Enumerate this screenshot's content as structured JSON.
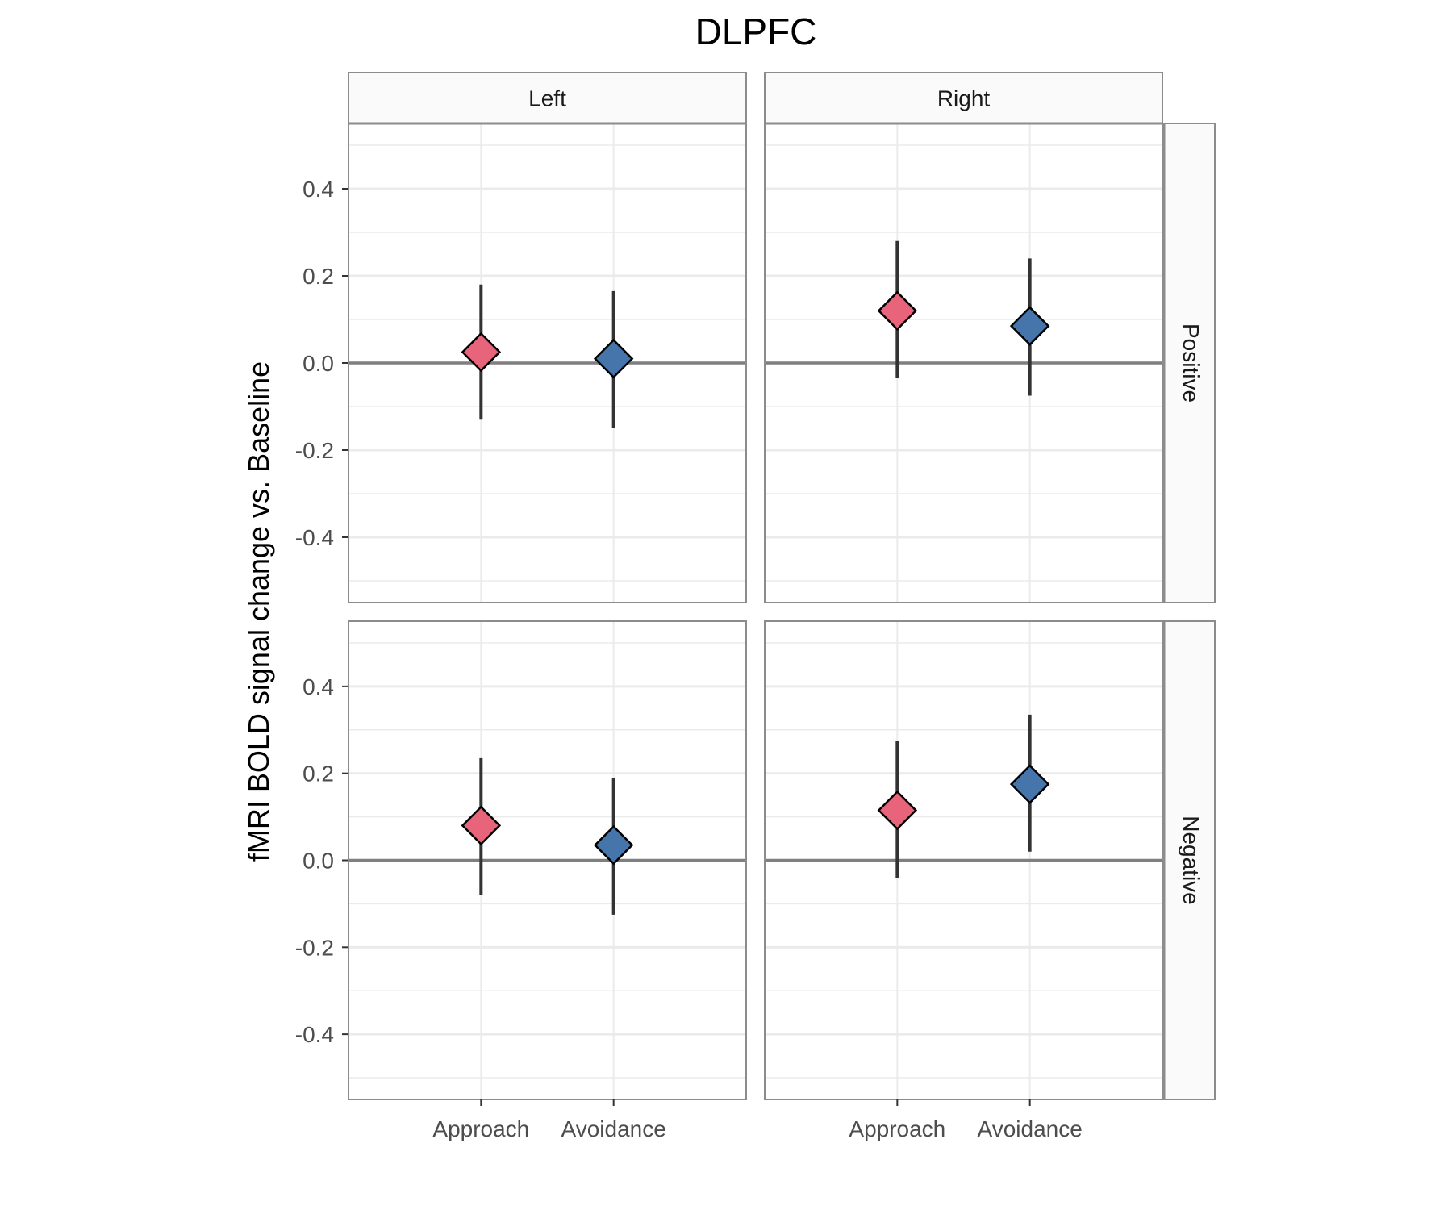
{
  "chart_data": {
    "type": "scatter",
    "title": "DLPFC",
    "ylabel": "fMRI BOLD signal change vs. Baseline",
    "xlabel": "",
    "categories": [
      "Approach",
      "Avoidance"
    ],
    "column_facets": [
      "Left",
      "Right"
    ],
    "row_facets": [
      "Positive",
      "Negative"
    ],
    "ylim": [
      -0.55,
      0.55
    ],
    "yticks": [
      "0.4",
      "0.2",
      "0.0",
      "-0.2",
      "-0.4"
    ],
    "ytick_values": [
      0.4,
      0.2,
      0.0,
      -0.2,
      -0.4
    ],
    "reference_line": 0.0,
    "marker": "diamond",
    "colors": {
      "Approach": "#e8647a",
      "Avoidance": "#4575aa"
    },
    "grid": true,
    "panels": [
      {
        "column": "Left",
        "row": "Positive",
        "points": [
          {
            "category": "Approach",
            "value": 0.025,
            "lower": -0.13,
            "upper": 0.18
          },
          {
            "category": "Avoidance",
            "value": 0.01,
            "lower": -0.15,
            "upper": 0.165
          }
        ]
      },
      {
        "column": "Right",
        "row": "Positive",
        "points": [
          {
            "category": "Approach",
            "value": 0.12,
            "lower": -0.035,
            "upper": 0.28
          },
          {
            "category": "Avoidance",
            "value": 0.085,
            "lower": -0.075,
            "upper": 0.24
          }
        ]
      },
      {
        "column": "Left",
        "row": "Negative",
        "points": [
          {
            "category": "Approach",
            "value": 0.08,
            "lower": -0.08,
            "upper": 0.235
          },
          {
            "category": "Avoidance",
            "value": 0.035,
            "lower": -0.125,
            "upper": 0.19
          }
        ]
      },
      {
        "column": "Right",
        "row": "Negative",
        "points": [
          {
            "category": "Approach",
            "value": 0.115,
            "lower": -0.04,
            "upper": 0.275
          },
          {
            "category": "Avoidance",
            "value": 0.175,
            "lower": 0.02,
            "upper": 0.335
          }
        ]
      }
    ]
  }
}
